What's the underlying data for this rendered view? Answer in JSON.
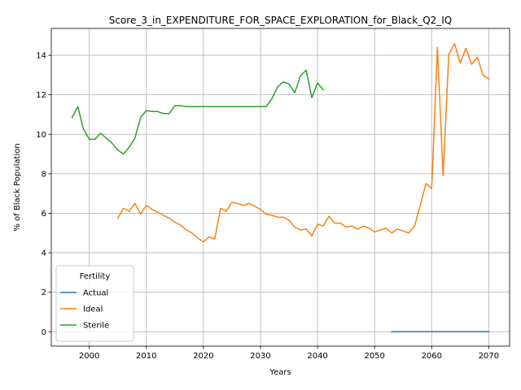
{
  "chart_data": {
    "type": "line",
    "title": "Score_3_in_EXPENDITURE_FOR_SPACE_EXPLORATION_for_Black_Q2_IQ",
    "xlabel": "Years",
    "ylabel": "% of Black Population",
    "xlim": [
      1993.35,
      2073.65
    ],
    "ylim": [
      -0.73,
      15.36
    ],
    "xticks": [
      2000,
      2010,
      2020,
      2030,
      2040,
      2050,
      2060,
      2070
    ],
    "yticks": [
      0,
      2,
      4,
      6,
      8,
      10,
      12,
      14
    ],
    "grid": true,
    "legend": {
      "title": "Fertility",
      "position": "lower left"
    },
    "series": [
      {
        "name": "Actual",
        "color": "#1f77b4",
        "x": [
          2053,
          2054,
          2055,
          2056,
          2057,
          2058,
          2059,
          2060,
          2061,
          2062,
          2063,
          2064,
          2065,
          2066,
          2067,
          2068,
          2069,
          2070
        ],
        "y": [
          0,
          0,
          0,
          0,
          0,
          0,
          0,
          0,
          0,
          0,
          0,
          0,
          0,
          0,
          0,
          0,
          0,
          0
        ]
      },
      {
        "name": "Ideal",
        "color": "#ff7f0e",
        "x": [
          2005,
          2006,
          2007,
          2008,
          2009,
          2010,
          2011,
          2012,
          2013,
          2014,
          2015,
          2016,
          2017,
          2018,
          2019,
          2020,
          2021,
          2022,
          2023,
          2024,
          2025,
          2026,
          2027,
          2028,
          2029,
          2030,
          2031,
          2032,
          2033,
          2034,
          2035,
          2036,
          2037,
          2038,
          2039,
          2040,
          2041,
          2042,
          2043,
          2044,
          2045,
          2046,
          2047,
          2048,
          2049,
          2050,
          2051,
          2052,
          2053,
          2054,
          2055,
          2056,
          2057,
          2058,
          2059,
          2060,
          2061,
          2062,
          2063,
          2064,
          2065,
          2066,
          2067,
          2068,
          2069,
          2070
        ],
        "y": [
          5.75,
          6.25,
          6.1,
          6.5,
          5.95,
          6.4,
          6.2,
          6.05,
          5.9,
          5.75,
          5.55,
          5.4,
          5.15,
          5.0,
          4.75,
          4.55,
          4.8,
          4.7,
          6.25,
          6.1,
          6.55,
          6.5,
          6.4,
          6.5,
          6.35,
          6.2,
          5.95,
          5.9,
          5.8,
          5.8,
          5.65,
          5.3,
          5.15,
          5.2,
          4.85,
          5.45,
          5.35,
          5.85,
          5.5,
          5.5,
          5.3,
          5.35,
          5.2,
          5.35,
          5.25,
          5.05,
          5.15,
          5.25,
          5.0,
          5.2,
          5.1,
          5.0,
          5.35,
          6.4,
          7.5,
          7.25,
          14.4,
          7.9,
          14.05,
          14.6,
          13.6,
          14.35,
          13.55,
          13.9,
          13.0,
          12.8
        ]
      },
      {
        "name": "Sterile",
        "color": "#2ca02c",
        "x": [
          1997,
          1998,
          1999,
          2000,
          2001,
          2002,
          2003,
          2004,
          2005,
          2006,
          2007,
          2008,
          2009,
          2010,
          2011,
          2012,
          2013,
          2014,
          2015,
          2016,
          2017,
          2018,
          2019,
          2020,
          2021,
          2022,
          2023,
          2024,
          2025,
          2026,
          2027,
          2028,
          2029,
          2030,
          2031,
          2032,
          2033,
          2034,
          2035,
          2036,
          2037,
          2038,
          2039,
          2040,
          2041
        ],
        "y": [
          10.85,
          11.4,
          10.25,
          9.75,
          9.75,
          10.05,
          9.8,
          9.55,
          9.2,
          9.0,
          9.35,
          9.8,
          10.85,
          11.2,
          11.15,
          11.15,
          11.05,
          11.05,
          11.45,
          11.45,
          11.4,
          11.4,
          11.4,
          11.4,
          11.4,
          11.4,
          11.4,
          11.4,
          11.4,
          11.4,
          11.4,
          11.4,
          11.4,
          11.4,
          11.4,
          11.8,
          12.4,
          12.65,
          12.55,
          12.1,
          12.95,
          13.25,
          11.85,
          12.6,
          12.25
        ]
      }
    ]
  }
}
